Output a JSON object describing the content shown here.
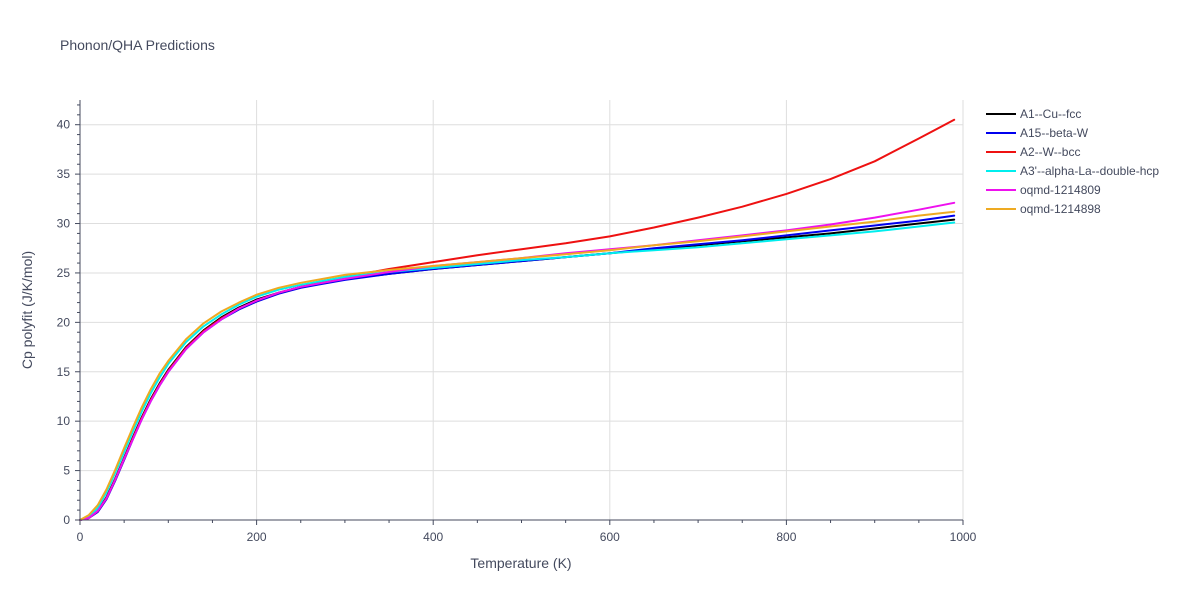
{
  "chart_data": {
    "type": "line",
    "title": "Phonon/QHA Predictions",
    "xlabel": "Temperature (K)",
    "ylabel": "Cp polyfit (J/K/mol)",
    "xlim": [
      0,
      1000
    ],
    "ylim": [
      0,
      42.5
    ],
    "xticks": [
      0,
      200,
      400,
      600,
      800,
      1000
    ],
    "yticks": [
      0,
      5,
      10,
      15,
      20,
      25,
      30,
      35,
      40
    ],
    "grid": true,
    "legend_position": "right",
    "x": [
      0,
      10,
      20,
      30,
      40,
      50,
      60,
      70,
      80,
      90,
      100,
      120,
      140,
      160,
      180,
      200,
      225,
      250,
      275,
      300,
      350,
      400,
      450,
      500,
      550,
      600,
      650,
      700,
      750,
      800,
      850,
      900,
      950,
      990
    ],
    "series": [
      {
        "name": "A1--Cu--fcc",
        "color": "#000000",
        "values": [
          0,
          0.2,
          0.9,
          2.3,
          4.2,
          6.3,
          8.4,
          10.4,
          12.2,
          13.8,
          15.2,
          17.5,
          19.2,
          20.5,
          21.5,
          22.3,
          23.0,
          23.6,
          24.0,
          24.4,
          24.9,
          25.4,
          25.8,
          26.2,
          26.6,
          27.0,
          27.4,
          27.8,
          28.2,
          28.6,
          29.0,
          29.5,
          30.0,
          30.4
        ]
      },
      {
        "name": "A15--beta-W",
        "color": "#0000ee",
        "values": [
          0,
          0.2,
          0.8,
          2.1,
          4.0,
          6.1,
          8.2,
          10.2,
          12.0,
          13.6,
          15.0,
          17.3,
          19.0,
          20.3,
          21.3,
          22.1,
          22.9,
          23.5,
          23.9,
          24.3,
          24.9,
          25.4,
          25.8,
          26.2,
          26.6,
          27.0,
          27.5,
          27.9,
          28.3,
          28.8,
          29.3,
          29.8,
          30.3,
          30.8
        ]
      },
      {
        "name": "A2--W--bcc",
        "color": "#ee1111",
        "values": [
          0,
          0.2,
          0.9,
          2.2,
          4.1,
          6.2,
          8.3,
          10.3,
          12.1,
          13.7,
          15.1,
          17.4,
          19.1,
          20.4,
          21.4,
          22.2,
          23.0,
          23.6,
          24.1,
          24.6,
          25.4,
          26.1,
          26.8,
          27.4,
          28.0,
          28.7,
          29.6,
          30.6,
          31.7,
          33.0,
          34.5,
          36.3,
          38.6,
          40.5
        ]
      },
      {
        "name": "A3'--alpha-La--double-hcp",
        "color": "#00eeee",
        "values": [
          0,
          0.3,
          1.2,
          2.8,
          4.8,
          6.9,
          9.0,
          11.0,
          12.8,
          14.4,
          15.8,
          18.0,
          19.6,
          20.8,
          21.8,
          22.6,
          23.3,
          23.8,
          24.2,
          24.6,
          25.1,
          25.5,
          25.9,
          26.3,
          26.6,
          27.0,
          27.3,
          27.6,
          28.0,
          28.4,
          28.8,
          29.2,
          29.7,
          30.1
        ]
      },
      {
        "name": "oqmd-1214809",
        "color": "#ee11ee",
        "values": [
          0,
          0.2,
          0.9,
          2.2,
          4.1,
          6.2,
          8.2,
          10.2,
          12.0,
          13.6,
          15.0,
          17.3,
          19.0,
          20.3,
          21.4,
          22.2,
          23.0,
          23.6,
          24.0,
          24.4,
          25.1,
          25.7,
          26.1,
          26.5,
          27.0,
          27.4,
          27.8,
          28.3,
          28.8,
          29.3,
          29.9,
          30.6,
          31.4,
          32.1
        ]
      },
      {
        "name": "oqmd-1214898",
        "color": "#eeaa22",
        "values": [
          0,
          0.5,
          1.5,
          3.1,
          5.1,
          7.3,
          9.4,
          11.4,
          13.2,
          14.8,
          16.1,
          18.3,
          19.9,
          21.1,
          22.0,
          22.8,
          23.5,
          24.0,
          24.4,
          24.8,
          25.3,
          25.7,
          26.1,
          26.5,
          26.9,
          27.3,
          27.8,
          28.2,
          28.7,
          29.2,
          29.7,
          30.2,
          30.8,
          31.2
        ]
      }
    ]
  }
}
